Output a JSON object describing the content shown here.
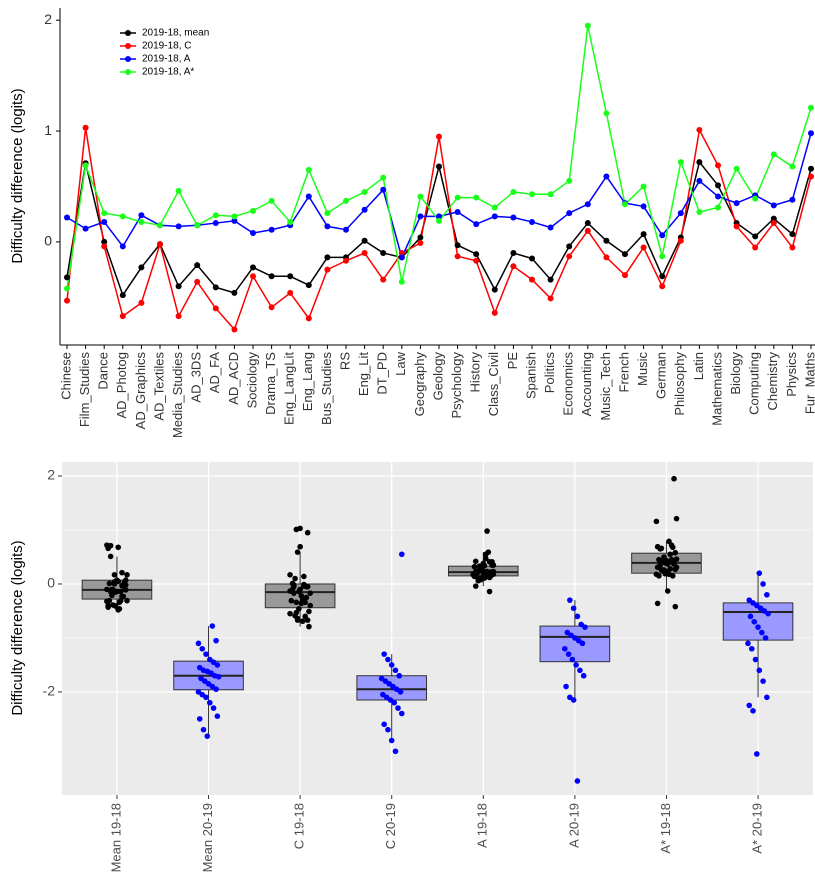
{
  "chart_data": [
    {
      "type": "line",
      "ylabel": "Difficulty difference (logits)",
      "categories": [
        "Chinese",
        "Film_Studies",
        "Dance",
        "AD_Photog",
        "AD_Graphics",
        "AD_Textiles",
        "Media_Studies",
        "AD_3DS",
        "AD_FA",
        "AD_ACD",
        "Sociology",
        "Drama_TS",
        "Eng_LangLit",
        "Eng_Lang",
        "Bus_Studies",
        "RS",
        "Eng_Lit",
        "DT_PD",
        "Law",
        "Geography",
        "Geology",
        "Psychology",
        "History",
        "Class_Civil",
        "PE",
        "Spanish",
        "Politics",
        "Economics",
        "Accounting",
        "Music_Tech",
        "French",
        "Music",
        "German",
        "Philosophy",
        "Latin",
        "Mathematics",
        "Biology",
        "Computing",
        "Chemistry",
        "Physics",
        "Fur_Maths"
      ],
      "series": [
        {
          "name": "2019-18, mean",
          "color": "#000000",
          "values": [
            -0.32,
            0.71,
            0.0,
            -0.48,
            -0.23,
            -0.02,
            -0.4,
            -0.21,
            -0.41,
            -0.46,
            -0.23,
            -0.31,
            -0.31,
            -0.39,
            -0.14,
            -0.14,
            0.01,
            -0.1,
            -0.14,
            0.04,
            0.68,
            -0.03,
            -0.11,
            -0.43,
            -0.1,
            -0.15,
            -0.34,
            -0.04,
            0.17,
            0.01,
            -0.11,
            0.07,
            -0.31,
            0.04,
            0.72,
            0.51,
            0.17,
            0.05,
            0.21,
            0.07,
            0.66
          ]
        },
        {
          "name": "2019-18, C",
          "color": "#ff0000",
          "values": [
            -0.53,
            1.03,
            -0.04,
            -0.67,
            -0.55,
            -0.02,
            -0.67,
            -0.36,
            -0.6,
            -0.79,
            -0.31,
            -0.59,
            -0.46,
            -0.69,
            -0.25,
            -0.17,
            -0.1,
            -0.34,
            -0.1,
            -0.01,
            0.95,
            -0.13,
            -0.17,
            -0.64,
            -0.22,
            -0.34,
            -0.51,
            -0.13,
            0.1,
            -0.14,
            -0.3,
            -0.05,
            -0.4,
            0.01,
            1.01,
            0.69,
            0.14,
            -0.05,
            0.17,
            -0.05,
            0.59
          ]
        },
        {
          "name": "2019-18, A",
          "color": "#0000ff",
          "values": [
            0.22,
            0.12,
            0.18,
            -0.04,
            0.24,
            0.15,
            0.14,
            0.15,
            0.17,
            0.19,
            0.08,
            0.11,
            0.15,
            0.41,
            0.14,
            0.11,
            0.29,
            0.47,
            -0.14,
            0.23,
            0.23,
            0.27,
            0.16,
            0.23,
            0.22,
            0.18,
            0.13,
            0.26,
            0.34,
            0.59,
            0.35,
            0.32,
            0.06,
            0.26,
            0.55,
            0.41,
            0.35,
            0.42,
            0.33,
            0.38,
            0.98
          ]
        },
        {
          "name": "2019-18, A*",
          "color": "#1aff1a",
          "values": [
            -0.42,
            0.69,
            0.26,
            0.23,
            0.18,
            0.15,
            0.46,
            0.15,
            0.24,
            0.23,
            0.28,
            0.37,
            0.18,
            0.65,
            0.26,
            0.37,
            0.45,
            0.58,
            -0.36,
            0.41,
            0.19,
            0.4,
            0.4,
            0.31,
            0.45,
            0.43,
            0.43,
            0.55,
            1.95,
            1.16,
            0.34,
            0.5,
            -0.13,
            0.72,
            0.27,
            0.31,
            0.66,
            0.39,
            0.79,
            0.68,
            1.21
          ]
        }
      ],
      "ylim": [
        -0.93,
        2.11
      ],
      "yticks": [
        0,
        1,
        2
      ],
      "legend": "top-left"
    },
    {
      "type": "box",
      "ylabel": "Difficulty difference (logits)",
      "categories": [
        "Mean 19-18",
        "Mean 20-19",
        "C 19-18",
        "C 20-19",
        "A 19-18",
        "A 20-19",
        "A* 19-18",
        "A* 20-19"
      ],
      "boxes": [
        {
          "min": -0.48,
          "q1": -0.28,
          "median": -0.11,
          "q3": 0.07,
          "max": 0.51,
          "fill": "#999999",
          "point_color": "#000000",
          "points": [
            -0.32,
            0.71,
            0.0,
            -0.48,
            -0.23,
            -0.02,
            -0.4,
            -0.21,
            -0.41,
            -0.46,
            -0.23,
            -0.31,
            -0.31,
            -0.39,
            -0.14,
            -0.14,
            0.01,
            -0.1,
            -0.14,
            0.04,
            0.68,
            -0.03,
            -0.11,
            -0.43,
            -0.1,
            -0.15,
            -0.34,
            -0.04,
            0.17,
            0.01,
            -0.11,
            0.07,
            -0.31,
            0.04,
            0.72,
            0.51,
            0.17,
            0.05,
            0.21,
            0.07,
            0.66
          ]
        },
        {
          "min": -2.82,
          "q1": -1.96,
          "median": -1.7,
          "q3": -1.43,
          "max": -0.78,
          "fill": "#9999ff",
          "point_color": "#0000ff",
          "points": [
            -0.78,
            -1.05,
            -1.1,
            -1.2,
            -1.3,
            -1.4,
            -1.45,
            -1.5,
            -1.55,
            -1.6,
            -1.62,
            -1.65,
            -1.7,
            -1.72,
            -1.75,
            -1.8,
            -1.85,
            -1.9,
            -1.95,
            -2.0,
            -2.05,
            -2.1,
            -2.2,
            -2.3,
            -2.45,
            -2.5,
            -2.7,
            -2.82
          ]
        },
        {
          "min": -0.79,
          "q1": -0.44,
          "median": -0.15,
          "q3": 0.0,
          "max": 0.59,
          "fill": "#999999",
          "point_color": "#000000",
          "points": [
            -0.53,
            1.03,
            -0.04,
            -0.67,
            -0.55,
            -0.02,
            -0.67,
            -0.36,
            -0.6,
            -0.79,
            -0.31,
            -0.59,
            -0.46,
            -0.69,
            -0.25,
            -0.17,
            -0.1,
            -0.34,
            -0.1,
            -0.01,
            0.95,
            -0.13,
            -0.17,
            -0.64,
            -0.22,
            -0.34,
            -0.51,
            -0.13,
            0.1,
            -0.14,
            -0.3,
            -0.05,
            -0.4,
            0.01,
            1.01,
            0.69,
            0.14,
            -0.05,
            0.17,
            -0.05,
            0.59
          ]
        },
        {
          "min": -2.9,
          "q1": -2.15,
          "median": -1.95,
          "q3": -1.7,
          "max": -1.3,
          "fill": "#9999ff",
          "point_color": "#0000ff",
          "points": [
            0.55,
            -1.3,
            -1.4,
            -1.5,
            -1.6,
            -1.7,
            -1.75,
            -1.8,
            -1.85,
            -1.9,
            -1.95,
            -2.0,
            -2.05,
            -2.1,
            -2.15,
            -2.2,
            -2.3,
            -2.4,
            -2.6,
            -2.7,
            -2.9,
            -3.1
          ]
        },
        {
          "min": -0.04,
          "q1": 0.15,
          "median": 0.22,
          "q3": 0.33,
          "max": 0.59,
          "fill": "#999999",
          "point_color": "#000000",
          "points": [
            0.22,
            0.12,
            0.18,
            -0.04,
            0.24,
            0.15,
            0.14,
            0.15,
            0.17,
            0.19,
            0.08,
            0.11,
            0.15,
            0.41,
            0.14,
            0.11,
            0.29,
            0.47,
            -0.14,
            0.23,
            0.23,
            0.27,
            0.16,
            0.23,
            0.22,
            0.18,
            0.13,
            0.26,
            0.34,
            0.59,
            0.35,
            0.32,
            0.06,
            0.26,
            0.55,
            0.41,
            0.35,
            0.42,
            0.33,
            0.38,
            0.98
          ]
        },
        {
          "min": -2.15,
          "q1": -1.44,
          "median": -0.98,
          "q3": -0.78,
          "max": -0.3,
          "fill": "#9999ff",
          "point_color": "#0000ff",
          "points": [
            -0.3,
            -0.45,
            -0.6,
            -0.75,
            -0.8,
            -0.9,
            -0.95,
            -1.0,
            -1.05,
            -1.1,
            -1.2,
            -1.3,
            -1.4,
            -1.5,
            -1.6,
            -1.7,
            -1.9,
            -2.1,
            -2.15,
            -3.65
          ]
        },
        {
          "min": -0.13,
          "q1": 0.2,
          "median": 0.39,
          "q3": 0.57,
          "max": 0.79,
          "fill": "#999999",
          "point_color": "#000000",
          "points": [
            -0.42,
            0.69,
            0.26,
            0.23,
            0.18,
            0.15,
            0.46,
            0.15,
            0.24,
            0.23,
            0.28,
            0.37,
            0.18,
            0.65,
            0.26,
            0.37,
            0.45,
            0.58,
            -0.36,
            0.41,
            0.19,
            0.4,
            0.4,
            0.31,
            0.45,
            0.43,
            0.43,
            0.55,
            1.95,
            1.16,
            0.34,
            0.5,
            -0.13,
            0.72,
            0.27,
            0.31,
            0.66,
            0.39,
            0.79,
            0.68,
            1.21
          ]
        },
        {
          "min": -2.1,
          "q1": -1.04,
          "median": -0.52,
          "q3": -0.35,
          "max": 0.2,
          "fill": "#9999ff",
          "point_color": "#0000ff",
          "points": [
            0.2,
            0.0,
            -0.2,
            -0.3,
            -0.35,
            -0.4,
            -0.45,
            -0.5,
            -0.55,
            -0.6,
            -0.7,
            -0.8,
            -0.9,
            -1.0,
            -1.1,
            -1.2,
            -1.4,
            -1.6,
            -1.8,
            -2.1,
            -2.25,
            -2.35,
            -3.15
          ]
        }
      ],
      "ylim": [
        -3.91,
        2.26
      ],
      "yticks": [
        -2,
        0,
        2
      ],
      "grid": true
    }
  ]
}
